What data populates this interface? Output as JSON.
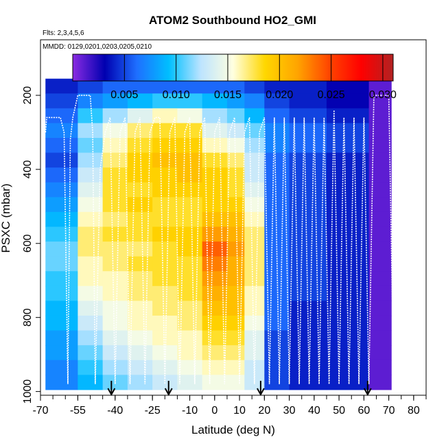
{
  "chart_data": {
    "type": "heatmap",
    "title": "ATOM2 Southbound HO2_GMI",
    "flights_note": "Flts: 2,3,4,5,6",
    "dates_note": "MMDD: 0129,0201,0203,0205,0210",
    "xlabel": "Latitude (deg N)",
    "ylabel": "PSXC (mbar)",
    "xlim": [
      -70,
      85
    ],
    "ylim": [
      1010,
      50
    ],
    "y_reversed": true,
    "x_tick_labels": [
      "-70",
      "-55",
      "-40",
      "-25",
      "-10",
      "0",
      "10",
      "20",
      "30",
      "40",
      "50",
      "60",
      "70",
      "80"
    ],
    "x_tick_values": [
      -70,
      -55,
      -40,
      -25,
      -10,
      0,
      10,
      20,
      30,
      40,
      50,
      60,
      70,
      80
    ],
    "y_tick_labels": [
      "200",
      "400",
      "600",
      "800",
      "1000"
    ],
    "y_tick_values": [
      200,
      400,
      600,
      800,
      1000
    ],
    "colorbar": {
      "range": [
        0.0,
        0.031
      ],
      "tick_labels": [
        "0.005",
        "0.010",
        "0.015",
        "0.020",
        "0.025",
        "0.030"
      ],
      "tick_values": [
        0.005,
        0.01,
        0.015,
        0.02,
        0.025,
        0.03
      ],
      "colors": [
        "#8a2be2",
        "#0000b0",
        "#1e6fff",
        "#00bfff",
        "#bde4ff",
        "#ffffe0",
        "#ffd700",
        "#ffa500",
        "#ff4500",
        "#ff0000",
        "#b22222"
      ]
    },
    "grid": false,
    "arrows_at_lat": [
      -41.5,
      -18.5,
      18.5,
      61.5
    ],
    "rows_pressure": [
      175,
      215,
      255,
      295,
      335,
      375,
      415,
      455,
      495,
      535,
      575,
      615,
      655,
      695,
      735,
      775,
      815,
      855,
      895,
      935,
      975
    ],
    "lat_bands": [
      {
        "lat_start": -68,
        "lat_end": -55,
        "values": [
          0.004,
          0.005,
          0.006,
          0.007,
          0.006,
          0.005,
          0.006,
          0.007,
          0.008,
          0.009,
          0.01,
          0.011,
          0.011,
          0.01,
          0.01,
          0.009,
          0.009,
          0.008,
          0.008,
          0.007,
          0.007
        ]
      },
      {
        "lat_start": -55,
        "lat_end": -45,
        "values": [
          0.005,
          0.007,
          0.01,
          0.012,
          0.011,
          0.012,
          0.013,
          0.014,
          0.015,
          0.016,
          0.017,
          0.017,
          0.016,
          0.016,
          0.015,
          0.014,
          0.013,
          0.012,
          0.011,
          0.01,
          0.009
        ]
      },
      {
        "lat_start": -45,
        "lat_end": -35,
        "values": [
          0.006,
          0.008,
          0.012,
          0.015,
          0.016,
          0.017,
          0.018,
          0.018,
          0.018,
          0.017,
          0.018,
          0.017,
          0.017,
          0.016,
          0.016,
          0.015,
          0.015,
          0.014,
          0.013,
          0.012,
          0.011
        ]
      },
      {
        "lat_start": -35,
        "lat_end": -25,
        "values": [
          0.006,
          0.009,
          0.014,
          0.017,
          0.018,
          0.019,
          0.019,
          0.018,
          0.019,
          0.018,
          0.018,
          0.017,
          0.018,
          0.017,
          0.017,
          0.016,
          0.016,
          0.015,
          0.014,
          0.013,
          0.012
        ]
      },
      {
        "lat_start": -25,
        "lat_end": -15,
        "values": [
          0.006,
          0.01,
          0.016,
          0.018,
          0.019,
          0.02,
          0.019,
          0.019,
          0.018,
          0.018,
          0.019,
          0.018,
          0.018,
          0.018,
          0.017,
          0.017,
          0.016,
          0.016,
          0.015,
          0.014,
          0.013
        ]
      },
      {
        "lat_start": -15,
        "lat_end": -5,
        "values": [
          0.006,
          0.01,
          0.015,
          0.018,
          0.019,
          0.02,
          0.02,
          0.019,
          0.018,
          0.018,
          0.019,
          0.019,
          0.018,
          0.018,
          0.018,
          0.017,
          0.017,
          0.016,
          0.016,
          0.015,
          0.014
        ]
      },
      {
        "lat_start": -5,
        "lat_end": 5,
        "values": [
          0.006,
          0.009,
          0.012,
          0.014,
          0.016,
          0.018,
          0.019,
          0.019,
          0.019,
          0.02,
          0.022,
          0.024,
          0.023,
          0.022,
          0.021,
          0.02,
          0.019,
          0.018,
          0.017,
          0.016,
          0.015
        ]
      },
      {
        "lat_start": 5,
        "lat_end": 12,
        "values": [
          0.006,
          0.008,
          0.011,
          0.013,
          0.015,
          0.017,
          0.018,
          0.018,
          0.019,
          0.02,
          0.021,
          0.022,
          0.021,
          0.021,
          0.02,
          0.02,
          0.019,
          0.018,
          0.017,
          0.016,
          0.015
        ]
      },
      {
        "lat_start": 12,
        "lat_end": 20,
        "values": [
          0.005,
          0.007,
          0.009,
          0.011,
          0.012,
          0.013,
          0.013,
          0.014,
          0.015,
          0.016,
          0.017,
          0.017,
          0.017,
          0.017,
          0.016,
          0.016,
          0.015,
          0.014,
          0.014,
          0.013,
          0.013
        ]
      },
      {
        "lat_start": 20,
        "lat_end": 30,
        "values": [
          0.004,
          0.005,
          0.006,
          0.007,
          0.007,
          0.006,
          0.006,
          0.006,
          0.006,
          0.006,
          0.006,
          0.006,
          0.006,
          0.006,
          0.006,
          0.006,
          0.006,
          0.005,
          0.005,
          0.005,
          0.005
        ]
      },
      {
        "lat_start": 30,
        "lat_end": 45,
        "values": [
          0.004,
          0.004,
          0.005,
          0.006,
          0.006,
          0.005,
          0.005,
          0.005,
          0.005,
          0.005,
          0.005,
          0.005,
          0.005,
          0.005,
          0.005,
          0.004,
          0.004,
          0.004,
          0.004,
          0.004,
          0.004
        ]
      },
      {
        "lat_start": 45,
        "lat_end": 62,
        "values": [
          0.003,
          0.003,
          0.004,
          0.005,
          0.005,
          0.004,
          0.004,
          0.004,
          0.004,
          0.004,
          0.004,
          0.004,
          0.004,
          0.004,
          0.004,
          0.004,
          0.004,
          0.004,
          0.004,
          0.004,
          0.004
        ]
      },
      {
        "lat_start": 62,
        "lat_end": 71,
        "values": [
          0.001,
          0.001,
          0.001,
          0.001,
          0.001,
          0.001,
          0.001,
          0.001,
          0.001,
          0.001,
          0.001,
          0.001,
          0.001,
          0.001,
          0.001,
          0.001,
          0.001,
          0.001,
          0.001,
          0.001,
          0.001
        ]
      }
    ],
    "flight_track": {
      "lat": [
        -68,
        -67.5,
        -66,
        -62,
        -60.5,
        -59,
        -58,
        -57,
        -56,
        -55,
        -54,
        -50,
        -49,
        -48,
        -46,
        -44,
        -42,
        -40,
        -38,
        -36,
        -34,
        -32,
        -30,
        -28,
        -26,
        -24,
        -22,
        -20,
        -18,
        -16,
        -14,
        -12,
        -10,
        -8,
        -6,
        -4,
        -2,
        0,
        2,
        4,
        6,
        8,
        10,
        12,
        14,
        16,
        18,
        20,
        22,
        24,
        26,
        28,
        30,
        32,
        34,
        36,
        38,
        40,
        42,
        44,
        46,
        48,
        50,
        52,
        54,
        56,
        58,
        60,
        62,
        64,
        66,
        68,
        70,
        72
      ],
      "p": [
        300,
        260,
        260,
        260,
        300,
        980,
        320,
        260,
        230,
        200,
        200,
        200,
        300,
        980,
        400,
        300,
        260,
        980,
        300,
        260,
        980,
        300,
        260,
        980,
        300,
        260,
        260,
        980,
        300,
        260,
        980,
        300,
        260,
        980,
        300,
        260,
        980,
        300,
        260,
        980,
        300,
        260,
        980,
        300,
        260,
        980,
        300,
        260,
        980,
        260,
        980,
        260,
        980,
        260,
        980,
        260,
        980,
        260,
        980,
        260,
        980,
        240,
        980,
        260,
        980,
        260,
        980,
        260,
        980,
        200,
        200,
        200,
        200,
        980
      ]
    }
  }
}
